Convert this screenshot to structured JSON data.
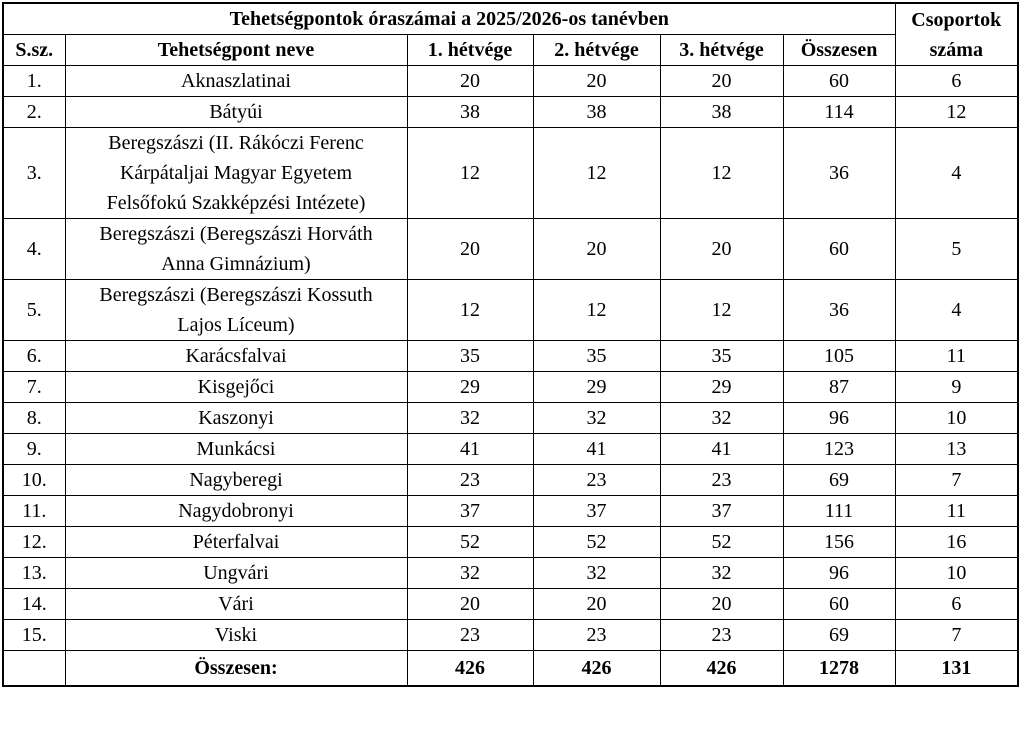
{
  "table": {
    "title": "Tehetségpontok óraszámai a 2025/2026-os tanévben",
    "groups_header": "Csoportok száma",
    "columns": [
      "S.sz.",
      "Tehetségpont neve",
      "1. hétvége",
      "2. hétvége",
      "3. hétvége",
      "Összesen"
    ],
    "rows": [
      {
        "num": "1.",
        "name": "Aknaszlatinai",
        "w1": "20",
        "w2": "20",
        "w3": "20",
        "total": "60",
        "groups": "6"
      },
      {
        "num": "2.",
        "name": "Bátyúi",
        "w1": "38",
        "w2": "38",
        "w3": "38",
        "total": "114",
        "groups": "12"
      },
      {
        "num": "3.",
        "name": "Beregszászi (II. Rákóczi Ferenc\nKárpátaljai Magyar Egyetem\nFelsőfokú Szakképzési Intézete)",
        "w1": "12",
        "w2": "12",
        "w3": "12",
        "total": "36",
        "groups": "4"
      },
      {
        "num": "4.",
        "name": "Beregszászi (Beregszászi Horváth\nAnna Gimnázium)",
        "w1": "20",
        "w2": "20",
        "w3": "20",
        "total": "60",
        "groups": "5"
      },
      {
        "num": "5.",
        "name": "Beregszászi (Beregszászi Kossuth\nLajos Líceum)",
        "w1": "12",
        "w2": "12",
        "w3": "12",
        "total": "36",
        "groups": "4"
      },
      {
        "num": "6.",
        "name": "Karácsfalvai",
        "w1": "35",
        "w2": "35",
        "w3": "35",
        "total": "105",
        "groups": "11"
      },
      {
        "num": "7.",
        "name": "Kisgejőci",
        "w1": "29",
        "w2": "29",
        "w3": "29",
        "total": "87",
        "groups": "9"
      },
      {
        "num": "8.",
        "name": "Kaszonyi",
        "w1": "32",
        "w2": "32",
        "w3": "32",
        "total": "96",
        "groups": "10"
      },
      {
        "num": "9.",
        "name": "Munkácsi",
        "w1": "41",
        "w2": "41",
        "w3": "41",
        "total": "123",
        "groups": "13"
      },
      {
        "num": "10.",
        "name": "Nagyberegi",
        "w1": "23",
        "w2": "23",
        "w3": "23",
        "total": "69",
        "groups": "7"
      },
      {
        "num": "11.",
        "name": "Nagydobronyi",
        "w1": "37",
        "w2": "37",
        "w3": "37",
        "total": "111",
        "groups": "11"
      },
      {
        "num": "12.",
        "name": "Péterfalvai",
        "w1": "52",
        "w2": "52",
        "w3": "52",
        "total": "156",
        "groups": "16"
      },
      {
        "num": "13.",
        "name": "Ungvári",
        "w1": "32",
        "w2": "32",
        "w3": "32",
        "total": "96",
        "groups": "10"
      },
      {
        "num": "14.",
        "name": "Vári",
        "w1": "20",
        "w2": "20",
        "w3": "20",
        "total": "60",
        "groups": "6"
      },
      {
        "num": "15.",
        "name": "Viski",
        "w1": "23",
        "w2": "23",
        "w3": "23",
        "total": "69",
        "groups": "7"
      }
    ],
    "footer": {
      "label": "Összesen:",
      "w1": "426",
      "w2": "426",
      "w3": "426",
      "total": "1278",
      "groups": "131"
    }
  }
}
